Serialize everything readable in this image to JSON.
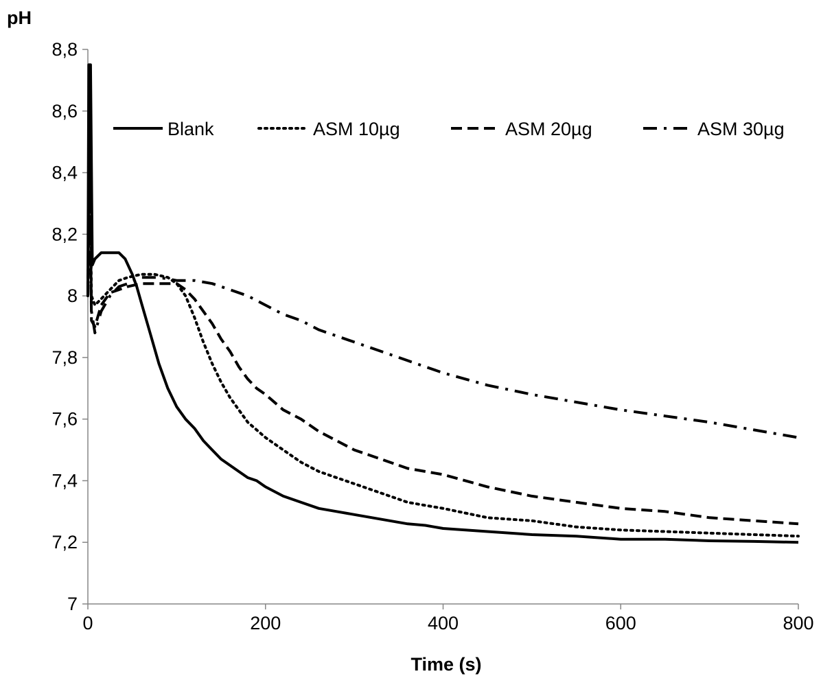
{
  "chart_data": {
    "type": "line",
    "title": "",
    "xlabel": "Time (s)",
    "ylabel": "pH",
    "xlim": [
      0,
      800
    ],
    "ylim": [
      7,
      8.8
    ],
    "xticks": [
      0,
      200,
      400,
      600,
      800
    ],
    "yticks": [
      7,
      7.2,
      7.4,
      7.6,
      7.8,
      8,
      8.2,
      8.4,
      8.6,
      8.8
    ],
    "xtick_labels": [
      "0",
      "200",
      "400",
      "600",
      "800"
    ],
    "ytick_labels": [
      "7",
      "7,2",
      "7,4",
      "7,6",
      "7,8",
      "8",
      "8,2",
      "8,4",
      "8,6",
      "8,8"
    ],
    "grid": false,
    "legend_position": "top",
    "series": [
      {
        "name": "Blank",
        "style": "solid",
        "color": "#000000",
        "points": [
          [
            0,
            8.0
          ],
          [
            1,
            8.75
          ],
          [
            3,
            8.75
          ],
          [
            5,
            8.1
          ],
          [
            8,
            8.12
          ],
          [
            15,
            8.14
          ],
          [
            25,
            8.14
          ],
          [
            35,
            8.14
          ],
          [
            42,
            8.12
          ],
          [
            50,
            8.07
          ],
          [
            55,
            8.03
          ],
          [
            60,
            7.98
          ],
          [
            70,
            7.88
          ],
          [
            80,
            7.78
          ],
          [
            90,
            7.7
          ],
          [
            100,
            7.64
          ],
          [
            110,
            7.6
          ],
          [
            120,
            7.57
          ],
          [
            130,
            7.53
          ],
          [
            140,
            7.5
          ],
          [
            150,
            7.47
          ],
          [
            160,
            7.45
          ],
          [
            170,
            7.43
          ],
          [
            180,
            7.41
          ],
          [
            190,
            7.4
          ],
          [
            200,
            7.38
          ],
          [
            220,
            7.35
          ],
          [
            240,
            7.33
          ],
          [
            260,
            7.31
          ],
          [
            280,
            7.3
          ],
          [
            300,
            7.29
          ],
          [
            320,
            7.28
          ],
          [
            340,
            7.27
          ],
          [
            360,
            7.26
          ],
          [
            380,
            7.255
          ],
          [
            400,
            7.245
          ],
          [
            450,
            7.235
          ],
          [
            500,
            7.225
          ],
          [
            550,
            7.22
          ],
          [
            600,
            7.21
          ],
          [
            650,
            7.21
          ],
          [
            700,
            7.205
          ],
          [
            750,
            7.203
          ],
          [
            800,
            7.2
          ]
        ]
      },
      {
        "name": "ASM 10µg",
        "style": "dotted",
        "color": "#000000",
        "points": [
          [
            0,
            8.0
          ],
          [
            2,
            8.57
          ],
          [
            4,
            8.0
          ],
          [
            8,
            7.97
          ],
          [
            15,
            7.99
          ],
          [
            25,
            8.02
          ],
          [
            35,
            8.05
          ],
          [
            45,
            8.06
          ],
          [
            60,
            8.07
          ],
          [
            75,
            8.07
          ],
          [
            90,
            8.06
          ],
          [
            100,
            8.04
          ],
          [
            110,
            8.0
          ],
          [
            120,
            7.93
          ],
          [
            130,
            7.85
          ],
          [
            140,
            7.78
          ],
          [
            150,
            7.72
          ],
          [
            160,
            7.67
          ],
          [
            170,
            7.63
          ],
          [
            180,
            7.59
          ],
          [
            200,
            7.54
          ],
          [
            220,
            7.5
          ],
          [
            240,
            7.46
          ],
          [
            260,
            7.43
          ],
          [
            280,
            7.41
          ],
          [
            300,
            7.39
          ],
          [
            320,
            7.37
          ],
          [
            340,
            7.35
          ],
          [
            360,
            7.33
          ],
          [
            380,
            7.32
          ],
          [
            400,
            7.31
          ],
          [
            450,
            7.28
          ],
          [
            500,
            7.27
          ],
          [
            550,
            7.25
          ],
          [
            600,
            7.24
          ],
          [
            650,
            7.235
          ],
          [
            700,
            7.23
          ],
          [
            750,
            7.225
          ],
          [
            800,
            7.22
          ]
        ]
      },
      {
        "name": "ASM 20µg",
        "style": "dashed",
        "color": "#000000",
        "points": [
          [
            0,
            8.0
          ],
          [
            2,
            8.5
          ],
          [
            4,
            7.92
          ],
          [
            8,
            7.9
          ],
          [
            15,
            7.97
          ],
          [
            25,
            8.01
          ],
          [
            35,
            8.02
          ],
          [
            45,
            8.03
          ],
          [
            60,
            8.04
          ],
          [
            75,
            8.04
          ],
          [
            90,
            8.04
          ],
          [
            100,
            8.04
          ],
          [
            110,
            8.02
          ],
          [
            120,
            7.99
          ],
          [
            130,
            7.95
          ],
          [
            140,
            7.91
          ],
          [
            150,
            7.86
          ],
          [
            160,
            7.82
          ],
          [
            170,
            7.77
          ],
          [
            180,
            7.73
          ],
          [
            190,
            7.7
          ],
          [
            200,
            7.68
          ],
          [
            220,
            7.63
          ],
          [
            240,
            7.6
          ],
          [
            260,
            7.56
          ],
          [
            280,
            7.53
          ],
          [
            300,
            7.5
          ],
          [
            320,
            7.48
          ],
          [
            340,
            7.46
          ],
          [
            360,
            7.44
          ],
          [
            380,
            7.43
          ],
          [
            400,
            7.42
          ],
          [
            450,
            7.38
          ],
          [
            500,
            7.35
          ],
          [
            550,
            7.33
          ],
          [
            600,
            7.31
          ],
          [
            650,
            7.3
          ],
          [
            700,
            7.28
          ],
          [
            750,
            7.27
          ],
          [
            800,
            7.26
          ]
        ]
      },
      {
        "name": "ASM 30µg",
        "style": "dashdot",
        "color": "#000000",
        "points": [
          [
            0,
            8.0
          ],
          [
            2,
            8.45
          ],
          [
            4,
            7.95
          ],
          [
            8,
            7.88
          ],
          [
            15,
            7.95
          ],
          [
            25,
            8.0
          ],
          [
            35,
            8.03
          ],
          [
            45,
            8.04
          ],
          [
            60,
            8.06
          ],
          [
            80,
            8.06
          ],
          [
            100,
            8.05
          ],
          [
            120,
            8.05
          ],
          [
            140,
            8.04
          ],
          [
            160,
            8.02
          ],
          [
            180,
            8.0
          ],
          [
            200,
            7.97
          ],
          [
            220,
            7.94
          ],
          [
            240,
            7.92
          ],
          [
            260,
            7.89
          ],
          [
            280,
            7.87
          ],
          [
            300,
            7.85
          ],
          [
            320,
            7.83
          ],
          [
            340,
            7.81
          ],
          [
            360,
            7.79
          ],
          [
            380,
            7.77
          ],
          [
            400,
            7.75
          ],
          [
            450,
            7.71
          ],
          [
            500,
            7.68
          ],
          [
            550,
            7.655
          ],
          [
            600,
            7.63
          ],
          [
            650,
            7.61
          ],
          [
            700,
            7.59
          ],
          [
            750,
            7.565
          ],
          [
            800,
            7.54
          ]
        ]
      }
    ]
  }
}
